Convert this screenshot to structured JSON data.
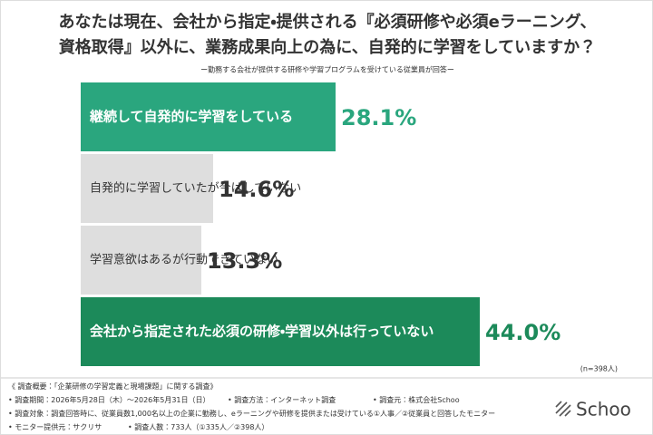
{
  "chart_data": {
    "type": "bar",
    "orientation": "horizontal",
    "title": [
      "あなたは現在、会社から指定・提供される『必須研修や必須eラーニング、",
      "資格取得』以外に、業務成果向上の為に、自発的に学習をしていますか？"
    ],
    "subtitle": "ー勤務する会社が提供する研修や学習プログラムを受けている従業員が回答ー",
    "categories": [
      "継続して自発的に学習をしている",
      "自発的に学習していたが今はしていない",
      "学習意欲はあるが行動できていない",
      "会社から指定された必須の研修・学習以外は行っていない"
    ],
    "values": [
      28.1,
      14.6,
      13.3,
      44.0
    ],
    "value_labels": [
      "28.1%",
      "14.6%",
      "13.3%",
      "44.0%"
    ],
    "colors": [
      "#2aa67e",
      "#dedede",
      "#dedede",
      "#1c8a5a"
    ],
    "text_colors": [
      "#ffffff",
      "#333333",
      "#333333",
      "#ffffff"
    ],
    "value_colors": [
      "#2aa67e",
      "#333333",
      "#333333",
      "#1c8a5a"
    ],
    "note": "(n=398人)"
  },
  "footer": {
    "heading": "《 調査概要：「企業研修の学習定義と現場課題」に関する調査》",
    "items": [
      "• 調査期間：2026年5月28日（木）～2026年5月31日（日）",
      "• 調査方法：インターネット調査",
      "• 調査元：株式会社Schoo",
      "• 調査対象：調査回答時に、従業員数1,000名以上の企業に勤務し、eラーニングや研修を提供または受けている①人事／②従業員と回答したモニター",
      "• モニター提供元：サクリサ",
      "• 調査人数：733人（①335人／②398人）"
    ]
  },
  "logo": "Schoo"
}
